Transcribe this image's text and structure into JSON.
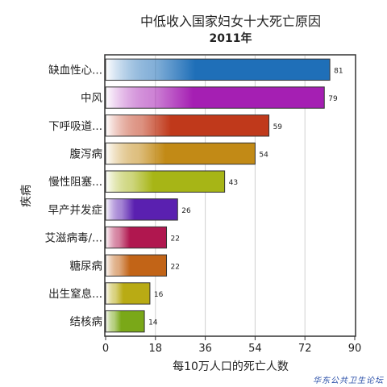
{
  "chart_data": {
    "type": "bar",
    "orientation": "horizontal",
    "title": "中低收入国家妇女十大死亡原因",
    "subtitle": "2011年",
    "xlabel": "每10万人口的死亡人数",
    "ylabel": "疾病",
    "xlim": [
      0,
      90
    ],
    "xticks": [
      "0",
      "18",
      "36",
      "54",
      "72",
      "90"
    ],
    "xtick_values": [
      0,
      18,
      36,
      54,
      72,
      90
    ],
    "grid": "vertical",
    "categories": [
      "缺血性心...",
      "中风",
      "下呼吸道...",
      "腹泻病",
      "慢性阻塞...",
      "早产并发症",
      "艾滋病毒/...",
      "糖尿病",
      "出生窒息...",
      "结核病"
    ],
    "values": [
      81,
      79,
      59,
      54,
      43,
      26,
      22,
      22,
      16,
      14
    ],
    "value_labels": [
      "81",
      "79",
      "59",
      "54",
      "43",
      "26",
      "22",
      "22",
      "16",
      "14"
    ],
    "colors": [
      "#1f6fb8",
      "#a51fb3",
      "#c0391b",
      "#c28a16",
      "#a7b516",
      "#5a20b0",
      "#b0174f",
      "#c26417",
      "#b9ab14",
      "#7aa818"
    ]
  },
  "watermark": "华东公共卫生论坛"
}
